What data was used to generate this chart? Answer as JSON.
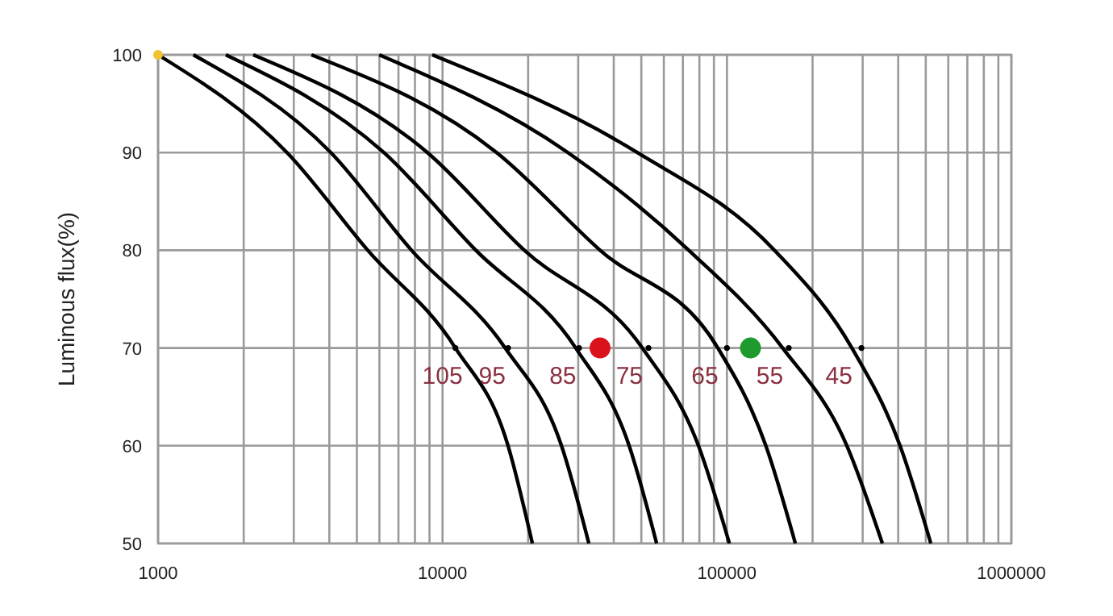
{
  "chart_data": {
    "type": "line",
    "ylabel": "Luminous flux(%)",
    "log": "x",
    "grid": true,
    "legend": false,
    "marker": "none",
    "line_style": "solid",
    "xlim": [
      1000,
      1000000
    ],
    "xticks": [
      1000,
      10000,
      100000,
      1000000
    ],
    "ylim": [
      50,
      100
    ],
    "yticks": [
      50,
      60,
      70,
      80,
      90,
      100
    ],
    "series": [
      {
        "name": "105",
        "color": "#000000",
        "x": [
          1000,
          2840,
          5460,
          11100,
          17000,
          20700
        ],
        "values": [
          100,
          90,
          80,
          70,
          60,
          50
        ]
      },
      {
        "name": "95",
        "color": "#000000",
        "x": [
          1330,
          4050,
          7780,
          16600,
          26200,
          32700
        ],
        "values": [
          100,
          90,
          80,
          70,
          60,
          50
        ]
      },
      {
        "name": "85",
        "color": "#000000",
        "x": [
          1730,
          6220,
          13100,
          29400,
          45300,
          56600
        ],
        "values": [
          100,
          90,
          80,
          70,
          60,
          50
        ]
      },
      {
        "name": "75",
        "color": "#000000",
        "x": [
          2160,
          8850,
          19400,
          50400,
          79400,
          102000
        ],
        "values": [
          100,
          90,
          80,
          70,
          60,
          50
        ]
      },
      {
        "name": "65",
        "color": "#000000",
        "x": [
          3460,
          15500,
          35800,
          92900,
          137000,
          174000
        ],
        "values": [
          100,
          90,
          80,
          70,
          60,
          50
        ]
      },
      {
        "name": "55",
        "color": "#000000",
        "x": [
          5990,
          27600,
          73400,
          157000,
          264000,
          352000
        ],
        "values": [
          100,
          90,
          80,
          70,
          60,
          50
        ]
      },
      {
        "name": "45",
        "color": "#000000",
        "x": [
          9200,
          48400,
          147000,
          275000,
          406000,
          521000
        ],
        "values": [
          100,
          90,
          80,
          70,
          60,
          50
        ]
      },
      {
        "type": "scatter",
        "color": "#000000",
        "marker": "circle",
        "x": [
          11100,
          17000,
          30200,
          53000,
          100000,
          165000,
          297000
        ],
        "values": [
          70,
          70,
          70,
          70,
          70,
          70,
          70
        ]
      },
      {
        "type": "scatter",
        "color": "#d9121b",
        "marker": "circle",
        "x": [
          35800
        ],
        "values": [
          70
        ]
      },
      {
        "type": "scatter",
        "color": "#1f9a2e",
        "marker": "circle",
        "x": [
          121000
        ],
        "values": [
          70
        ]
      },
      {
        "type": "scatter",
        "color": "#f2c230",
        "marker": "circle",
        "x": [
          1000
        ],
        "values": [
          100
        ]
      }
    ]
  }
}
